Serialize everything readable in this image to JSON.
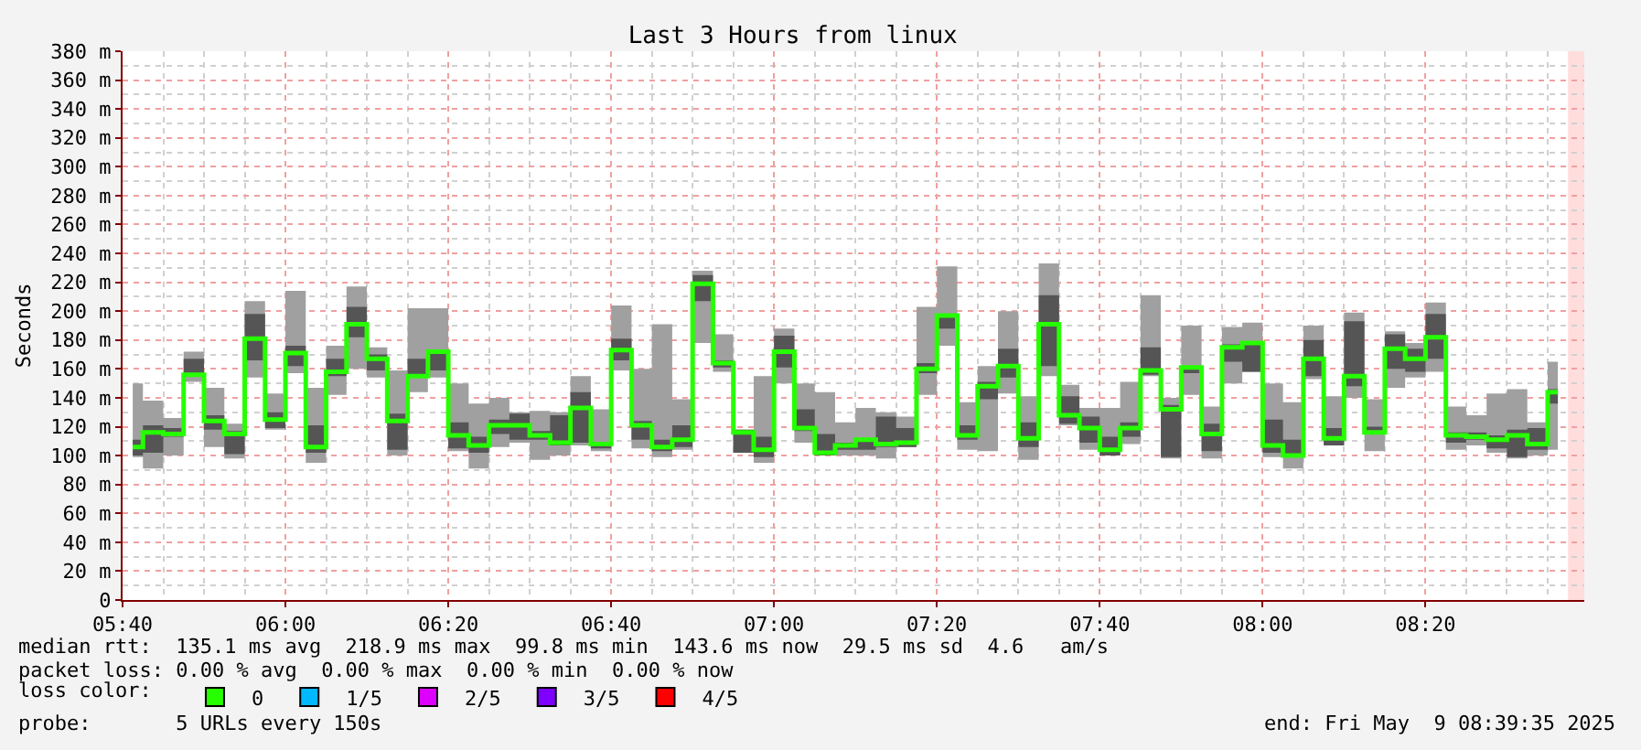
{
  "chart_data": {
    "type": "step",
    "title": "Last 3 Hours from linux",
    "ylabel": "Seconds",
    "legend_title": "loss color:",
    "legend": "bottom",
    "grid": true,
    "x": [
      5.6875,
      5.7292,
      5.7708,
      5.8125,
      5.8542,
      5.8958,
      5.9375,
      5.9792,
      6.0208,
      6.0625,
      6.1042,
      6.1458,
      6.1875,
      6.2292,
      6.2708,
      6.3125,
      6.3542,
      6.3958,
      6.4375,
      6.4792,
      6.5208,
      6.5625,
      6.6042,
      6.6458,
      6.6875,
      6.7292,
      6.7708,
      6.8125,
      6.8542,
      6.8958,
      6.9375,
      6.9792,
      7.0208,
      7.0625,
      7.1042,
      7.1458,
      7.1875,
      7.2292,
      7.2708,
      7.3125,
      7.3542,
      7.3958,
      7.4375,
      7.4792,
      7.5208,
      7.5625,
      7.6042,
      7.6458,
      7.6875,
      7.7292,
      7.7708,
      7.8125,
      7.8542,
      7.8958,
      7.9375,
      7.9792,
      8.0208,
      8.0625,
      8.1042,
      8.1458,
      8.1875,
      8.2292,
      8.2708,
      8.3125,
      8.3542,
      8.3958,
      8.4375,
      8.4792,
      8.5208,
      8.5625,
      8.6042
    ],
    "xlim": [
      5.6667,
      8.6583
    ],
    "xticks": [
      {
        "value": 5.6667,
        "label": "05:40"
      },
      {
        "value": 6,
        "label": "06:00"
      },
      {
        "value": 6.3333,
        "label": "06:20"
      },
      {
        "value": 6.6667,
        "label": "06:40"
      },
      {
        "value": 7,
        "label": "07:00"
      },
      {
        "value": 7.3333,
        "label": "07:20"
      },
      {
        "value": 7.6667,
        "label": "07:40"
      },
      {
        "value": 8,
        "label": "08:00"
      },
      {
        "value": 8.3333,
        "label": "08:20"
      }
    ],
    "ylim": [
      0,
      380
    ],
    "yticks": [
      0,
      {
        "value": 20,
        "label": "20 m"
      },
      {
        "value": 40,
        "label": "40 m"
      },
      {
        "value": 60,
        "label": "60 m"
      },
      {
        "value": 80,
        "label": "80 m"
      },
      {
        "value": 100,
        "label": "100 m"
      },
      {
        "value": 120,
        "label": "120 m"
      },
      {
        "value": 140,
        "label": "140 m"
      },
      {
        "value": 160,
        "label": "160 m"
      },
      {
        "value": 180,
        "label": "180 m"
      },
      {
        "value": 200,
        "label": "200 m"
      },
      {
        "value": 220,
        "label": "220 m"
      },
      {
        "value": 240,
        "label": "240 m"
      },
      {
        "value": 260,
        "label": "260 m"
      },
      {
        "value": 280,
        "label": "280 m"
      },
      {
        "value": 300,
        "label": "300 m"
      },
      {
        "value": 320,
        "label": "320 m"
      },
      {
        "value": 340,
        "label": "340 m"
      },
      {
        "value": 360,
        "label": "360 m"
      },
      {
        "value": 380,
        "label": "380 m"
      }
    ],
    "bands": [
      {
        "axis": "x",
        "from": 8.625,
        "to": 8.6583,
        "color": "#ffdddd"
      }
    ],
    "series": [
      {
        "name": "0",
        "color": "#26ff00",
        "values": [
          106,
          116,
          115,
          156,
          124,
          115,
          181,
          125,
          171,
          106,
          158,
          191,
          167,
          124,
          155,
          172,
          114,
          107,
          121,
          121,
          114,
          109,
          133,
          108,
          173,
          121,
          106,
          111,
          219,
          164,
          116,
          104,
          172,
          119,
          102,
          107,
          111,
          108,
          109,
          160,
          197,
          114,
          148,
          162,
          112,
          191,
          128,
          119,
          104,
          119,
          159,
          132,
          161,
          115,
          175,
          178,
          107,
          100,
          167,
          112,
          155,
          116,
          174,
          167,
          182,
          114,
          113,
          111,
          114,
          108,
          144
        ],
        "lower": [
          99,
          91,
          100,
          151,
          106,
          98,
          154,
          118,
          157,
          95,
          142,
          160,
          154,
          100,
          144,
          154,
          103,
          91,
          106,
          109,
          97,
          100,
          107,
          103,
          159,
          105,
          99,
          104,
          178,
          158,
          102,
          95,
          150,
          109,
          100,
          100,
          100,
          98,
          106,
          142,
          176,
          104,
          103,
          143,
          97,
          155,
          121,
          104,
          100,
          108,
          155,
          98,
          142,
          98,
          150,
          158,
          99,
          91,
          153,
          107,
          140,
          103,
          147,
          154,
          158,
          104,
          107,
          102,
          98,
          100,
          104
        ],
        "upper": [
          150,
          138,
          126,
          172,
          147,
          122,
          207,
          143,
          214,
          147,
          176,
          217,
          175,
          159,
          202,
          202,
          150,
          136,
          140,
          130,
          131,
          130,
          155,
          132,
          204,
          160,
          191,
          139,
          228,
          184,
          118,
          155,
          188,
          150,
          144,
          123,
          133,
          130,
          127,
          203,
          231,
          137,
          162,
          200,
          141,
          233,
          149,
          133,
          133,
          151,
          211,
          140,
          190,
          134,
          189,
          192,
          150,
          137,
          190,
          141,
          199,
          139,
          186,
          178,
          206,
          134,
          128,
          143,
          146,
          123,
          165
        ]
      },
      {
        "type": "step",
        "color": "#555555",
        "values": [
          null,
          null,
          null,
          null,
          null,
          null,
          null,
          null,
          null,
          null,
          null,
          null,
          null,
          null,
          null,
          null,
          null,
          null,
          null,
          null,
          null,
          null,
          null,
          null,
          null,
          null,
          null,
          null,
          null,
          null,
          null,
          null,
          null,
          null,
          null,
          null,
          null,
          null,
          null,
          null,
          null,
          null,
          null,
          null,
          null,
          null,
          null,
          null,
          null,
          null,
          null,
          null,
          null,
          null,
          null,
          null,
          null,
          null,
          null,
          null,
          null,
          null,
          null,
          null,
          null,
          null,
          null,
          null,
          null,
          null,
          null
        ],
        "lower": [
          100,
          102,
          113,
          155,
          118,
          101,
          166,
          119,
          162,
          102,
          155,
          182,
          159,
          104,
          155,
          159,
          105,
          102,
          115,
          111,
          111,
          107,
          109,
          105,
          166,
          111,
          103,
          106,
          207,
          161,
          102,
          99,
          161,
          117,
          100,
          104,
          104,
          106,
          106,
          157,
          188,
          111,
          139,
          154,
          106,
          162,
          122,
          109,
          100,
          113,
          156,
          99,
          157,
          103,
          165,
          158,
          102,
          99,
          155,
          107,
          148,
          116,
          160,
          158,
          167,
          109,
          111,
          105,
          99,
          104,
          136
        ],
        "upper": [
          111,
          121,
          119,
          167,
          128,
          117,
          198,
          130,
          176,
          121,
          167,
          203,
          170,
          129,
          167,
          173,
          123,
          113,
          125,
          129,
          117,
          128,
          144,
          109,
          181,
          124,
          111,
          121,
          225,
          166,
          118,
          113,
          183,
          132,
          115,
          109,
          112,
          127,
          119,
          164,
          198,
          121,
          151,
          174,
          123,
          211,
          141,
          127,
          113,
          123,
          175,
          135,
          162,
          122,
          177,
          179,
          125,
          111,
          180,
          119,
          193,
          120,
          184,
          174,
          198,
          116,
          116,
          114,
          118,
          119,
          146
        ]
      },
      {
        "name": "1/5",
        "color": "#00b8ff",
        "values": [
          null,
          null,
          null,
          null,
          null,
          null,
          null,
          null,
          null,
          null,
          null,
          null,
          null,
          null,
          null,
          null,
          null,
          null,
          null,
          null,
          null,
          null,
          null,
          null,
          null,
          null,
          null,
          null,
          null,
          null,
          null,
          null,
          null,
          null,
          null,
          null,
          null,
          null,
          null,
          null,
          null,
          null,
          null,
          null,
          null,
          null,
          null,
          null,
          null,
          null,
          null,
          null,
          null,
          null,
          null,
          null,
          null,
          null,
          null,
          null,
          null,
          null,
          null,
          null,
          null,
          null,
          null,
          null,
          null,
          null,
          null
        ]
      },
      {
        "name": "2/5",
        "color": "#dd00ff",
        "values": [
          null,
          null,
          null,
          null,
          null,
          null,
          null,
          null,
          null,
          null,
          null,
          null,
          null,
          null,
          null,
          null,
          null,
          null,
          null,
          null,
          null,
          null,
          null,
          null,
          null,
          null,
          null,
          null,
          null,
          null,
          null,
          null,
          null,
          null,
          null,
          null,
          null,
          null,
          null,
          null,
          null,
          null,
          null,
          null,
          null,
          null,
          null,
          null,
          null,
          null,
          null,
          null,
          null,
          null,
          null,
          null,
          null,
          null,
          null,
          null,
          null,
          null,
          null,
          null,
          null,
          null,
          null,
          null,
          null,
          null,
          null
        ]
      },
      {
        "name": "3/5",
        "color": "#7e00ff",
        "values": [
          null,
          null,
          null,
          null,
          null,
          null,
          null,
          null,
          null,
          null,
          null,
          null,
          null,
          null,
          null,
          null,
          null,
          null,
          null,
          null,
          null,
          null,
          null,
          null,
          null,
          null,
          null,
          null,
          null,
          null,
          null,
          null,
          null,
          null,
          null,
          null,
          null,
          null,
          null,
          null,
          null,
          null,
          null,
          null,
          null,
          null,
          null,
          null,
          null,
          null,
          null,
          null,
          null,
          null,
          null,
          null,
          null,
          null,
          null,
          null,
          null,
          null,
          null,
          null,
          null,
          null,
          null,
          null,
          null,
          null,
          null
        ]
      },
      {
        "name": "4/5",
        "color": "#ff0000",
        "values": [
          null,
          null,
          null,
          null,
          null,
          null,
          null,
          null,
          null,
          null,
          null,
          null,
          null,
          null,
          null,
          null,
          null,
          null,
          null,
          null,
          null,
          null,
          null,
          null,
          null,
          null,
          null,
          null,
          null,
          null,
          null,
          null,
          null,
          null,
          null,
          null,
          null,
          null,
          null,
          null,
          null,
          null,
          null,
          null,
          null,
          null,
          null,
          null,
          null,
          null,
          null,
          null,
          null,
          null,
          null,
          null,
          null,
          null,
          null,
          null,
          null,
          null,
          null,
          null,
          null,
          null,
          null,
          null,
          null,
          null,
          null
        ]
      }
    ],
    "annotations": [
      "median rtt:  135.1 ms avg  218.9 ms max  99.8 ms min  143.6 ms now  29.5 ms sd  4.6   am/s",
      "packet loss: 0.00 % avg  0.00 % max  0.00 % min  0.00 % now",
      "probe:       5 URLs every 150s",
      "end: Fri May  9 08:39:35 2025"
    ]
  }
}
